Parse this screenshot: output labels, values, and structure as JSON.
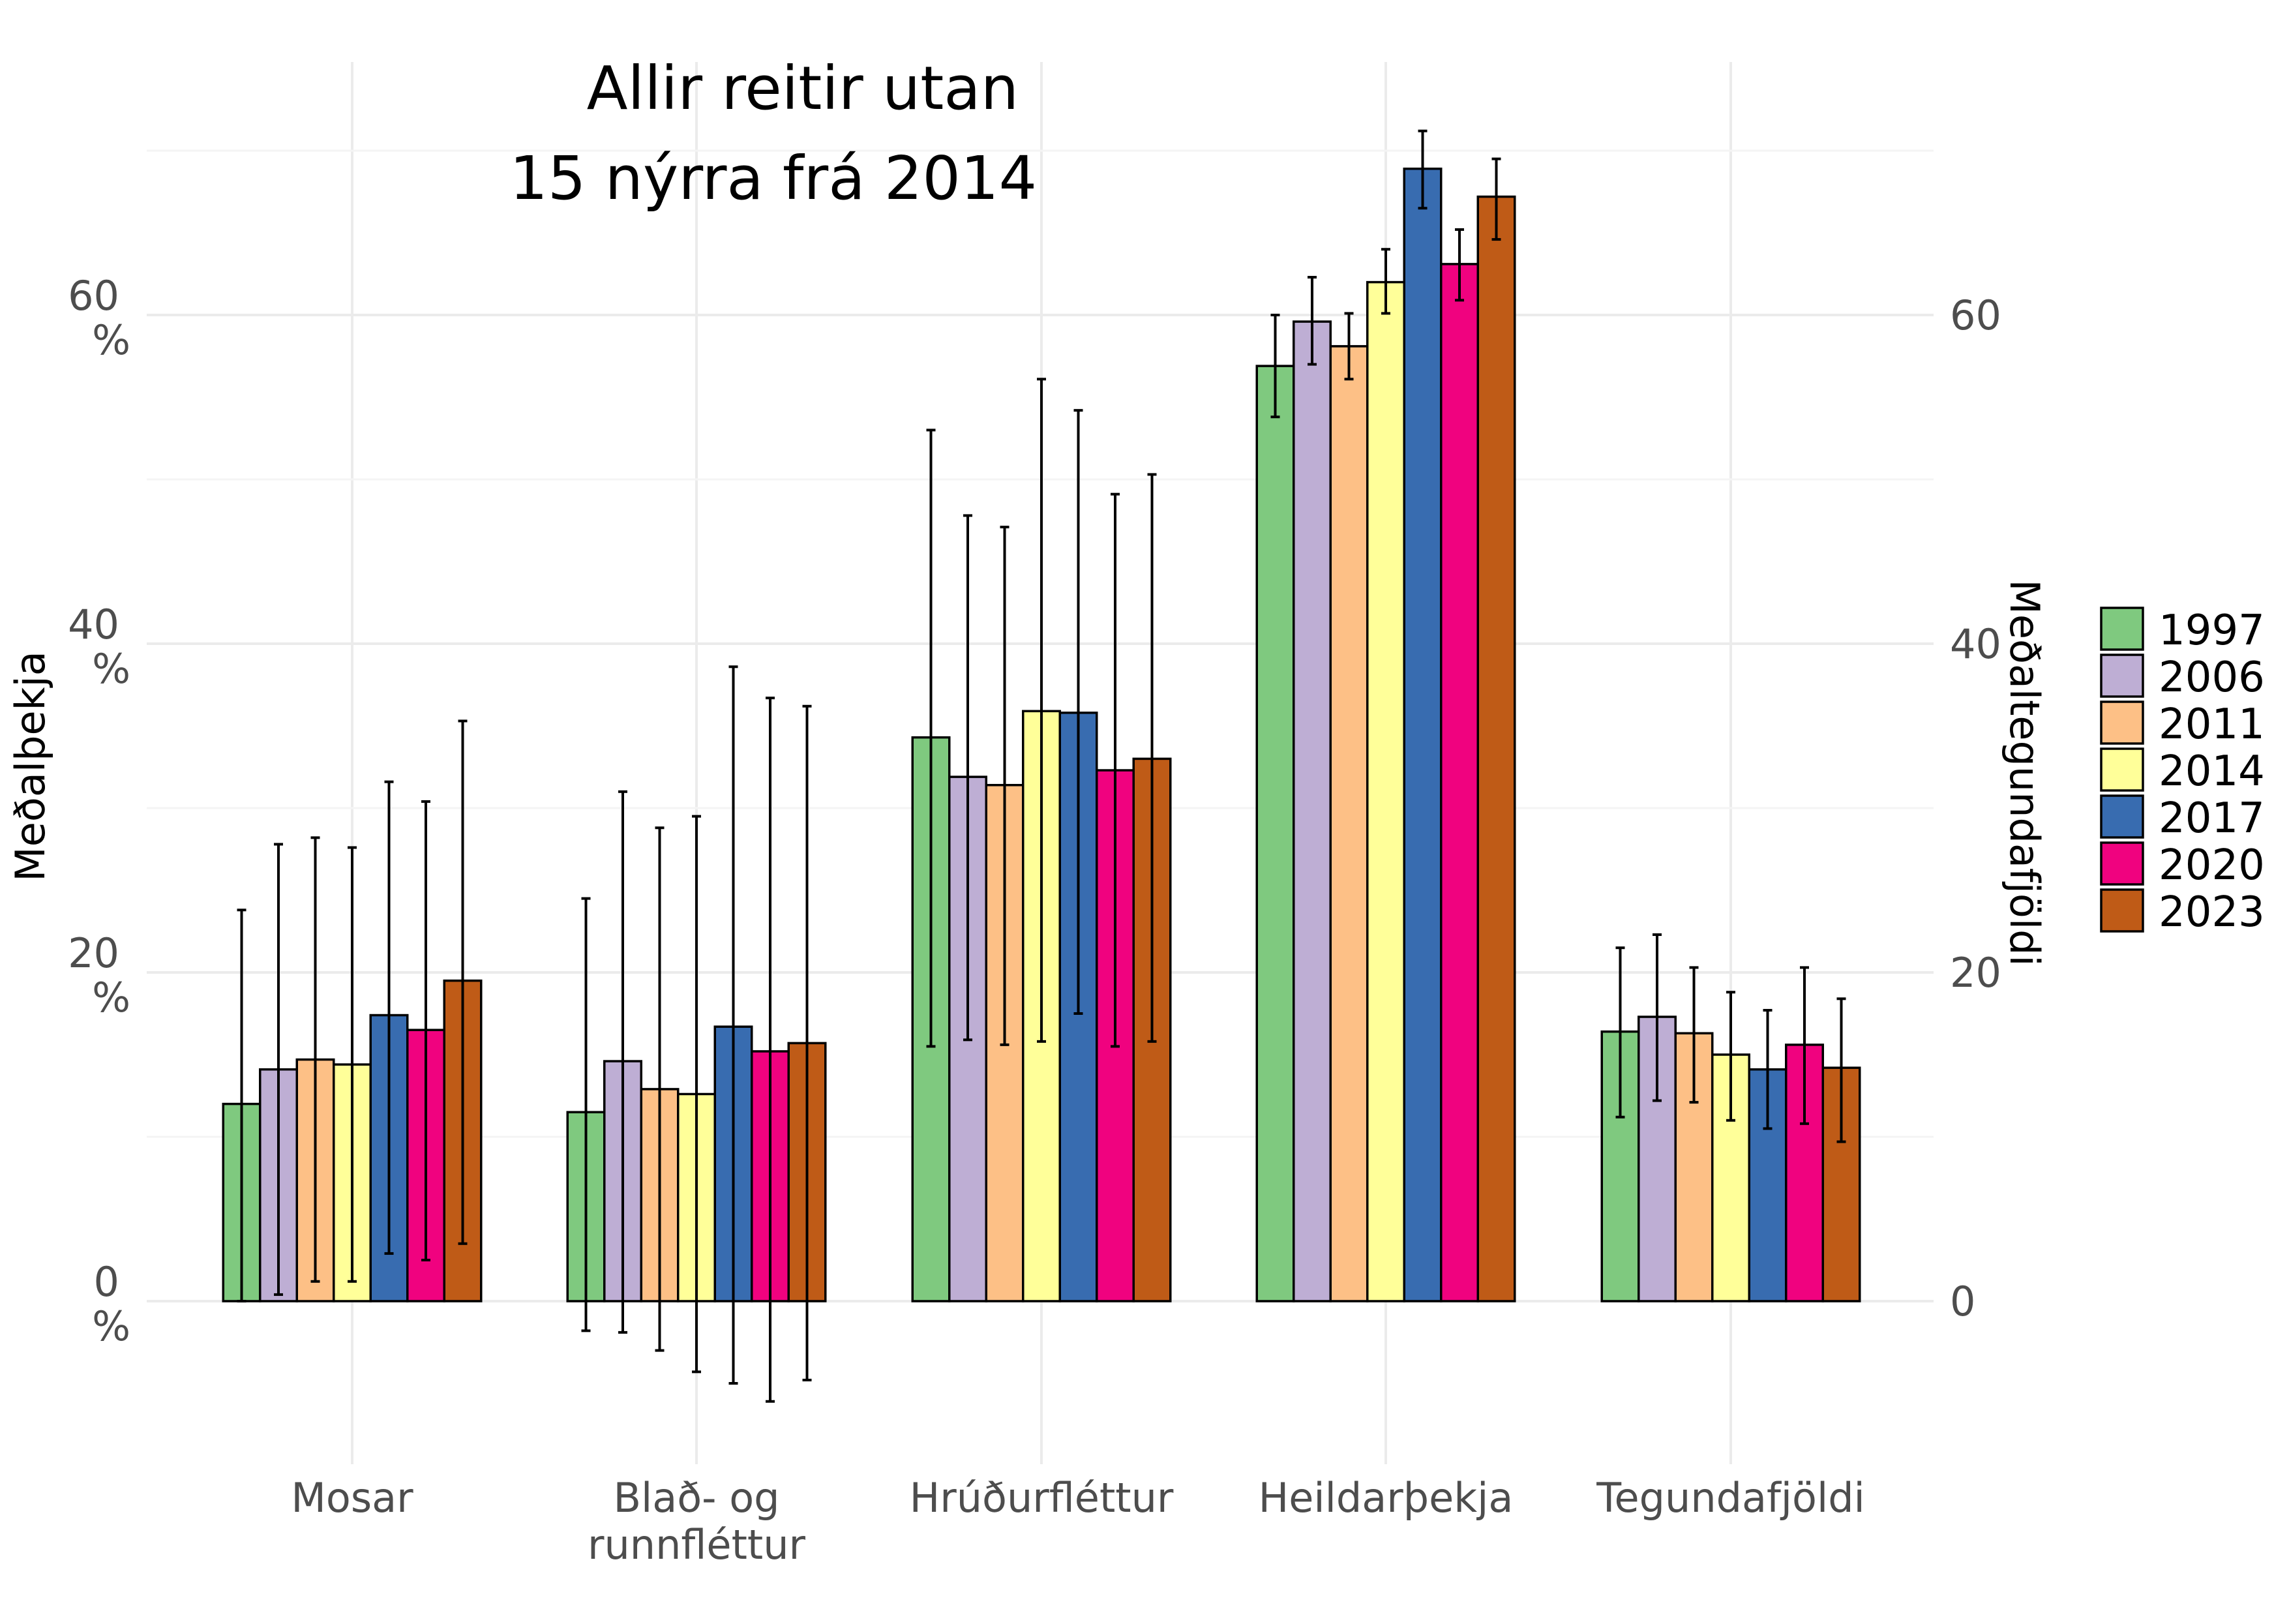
{
  "chart_data": {
    "type": "bar",
    "title_lines": [
      "Allir reitir utan",
      "15 nýrra frá 2014"
    ],
    "ylabel_left": "Meðalþekja",
    "ylabel_right": "Meðaltegundafjöldi",
    "categories": [
      "Mosar",
      "Blað- og\nrunnfléttur",
      "Hrúðurfléttur",
      "Heildarþekja",
      "Tegundafjöldi"
    ],
    "left_ticks": [
      "0 %",
      "20 %",
      "40 %",
      "60 %"
    ],
    "right_ticks": [
      "0",
      "20",
      "40",
      "60"
    ],
    "ylim": [
      -10,
      75
    ],
    "grid": true,
    "legend_position": "right",
    "series": [
      {
        "name": "1997",
        "color": "#7fc97f",
        "values": [
          12.0,
          11.5,
          34.3,
          56.9,
          16.4
        ],
        "err_low": [
          0.0,
          -1.8,
          15.5,
          53.8,
          11.2
        ],
        "err_high": [
          23.8,
          24.5,
          53.0,
          60.0,
          21.5
        ]
      },
      {
        "name": "2006",
        "color": "#beaed4",
        "values": [
          14.1,
          14.6,
          31.9,
          59.6,
          17.3
        ],
        "err_low": [
          0.4,
          -1.9,
          15.9,
          57.0,
          12.2
        ],
        "err_high": [
          27.8,
          31.0,
          47.8,
          62.3,
          22.3
        ]
      },
      {
        "name": "2011",
        "color": "#fdc086",
        "values": [
          14.7,
          12.9,
          31.4,
          58.1,
          16.3
        ],
        "err_low": [
          1.2,
          -3.0,
          15.6,
          56.1,
          12.1
        ],
        "err_high": [
          28.2,
          28.8,
          47.1,
          60.1,
          20.3
        ]
      },
      {
        "name": "2014",
        "color": "#ffff99",
        "values": [
          14.4,
          12.6,
          35.9,
          62.0,
          15.0
        ],
        "err_low": [
          1.2,
          -4.3,
          15.8,
          60.1,
          11.0
        ],
        "err_high": [
          27.6,
          29.5,
          56.1,
          64.0,
          18.8
        ]
      },
      {
        "name": "2017",
        "color": "#386cb0",
        "values": [
          17.4,
          16.7,
          35.8,
          68.9,
          14.1
        ],
        "err_low": [
          2.9,
          -5.0,
          17.5,
          66.5,
          10.5
        ],
        "err_high": [
          31.6,
          38.6,
          54.2,
          71.2,
          17.7
        ]
      },
      {
        "name": "2020",
        "color": "#f0027f",
        "values": [
          16.5,
          15.2,
          32.3,
          63.1,
          15.6
        ],
        "err_low": [
          2.5,
          -6.1,
          15.5,
          60.9,
          10.8
        ],
        "err_high": [
          30.4,
          36.7,
          49.1,
          65.2,
          20.3
        ]
      },
      {
        "name": "2023",
        "color": "#bf5b17",
        "values": [
          19.5,
          15.7,
          33.0,
          67.2,
          14.2
        ],
        "err_low": [
          3.5,
          -4.8,
          15.8,
          64.6,
          9.7
        ],
        "err_high": [
          35.3,
          36.2,
          50.3,
          69.5,
          18.4
        ]
      }
    ]
  }
}
